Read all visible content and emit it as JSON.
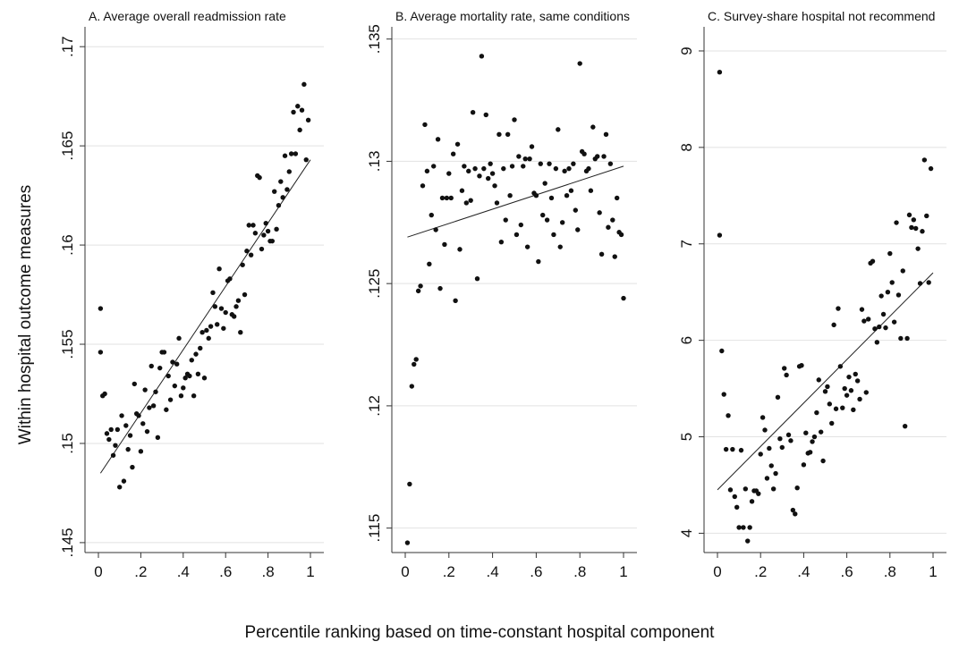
{
  "figure": {
    "ylabel": "Within hospital outcome measures",
    "xlabel": "Percentile ranking based on time-constant hospital component"
  },
  "chart_data": [
    {
      "type": "scatter",
      "title": "A. Average overall readmission rate",
      "xlim": [
        0,
        1
      ],
      "ylim": [
        0.1445,
        0.171
      ],
      "xticks": [
        0,
        0.2,
        0.4,
        0.6,
        0.8,
        1
      ],
      "xtick_labels": [
        "0",
        ".2",
        ".4",
        ".6",
        ".8",
        "1"
      ],
      "yticks": [
        0.145,
        0.15,
        0.155,
        0.16,
        0.165,
        0.17
      ],
      "ytick_labels": [
        ".145",
        ".15",
        ".155",
        ".16",
        ".165",
        ".17"
      ],
      "grid": true,
      "fit_line": [
        [
          0.01,
          0.1485
        ],
        [
          1.0,
          0.1643
        ]
      ],
      "points": [
        [
          0.01,
          0.1568
        ],
        [
          0.01,
          0.1546
        ],
        [
          0.02,
          0.1524
        ],
        [
          0.03,
          0.1525
        ],
        [
          0.04,
          0.1505
        ],
        [
          0.05,
          0.1502
        ],
        [
          0.06,
          0.1507
        ],
        [
          0.07,
          0.1494
        ],
        [
          0.08,
          0.1499
        ],
        [
          0.09,
          0.1507
        ],
        [
          0.1,
          0.1478
        ],
        [
          0.11,
          0.1514
        ],
        [
          0.12,
          0.1481
        ],
        [
          0.13,
          0.1509
        ],
        [
          0.14,
          0.1497
        ],
        [
          0.15,
          0.1504
        ],
        [
          0.16,
          0.1488
        ],
        [
          0.17,
          0.153
        ],
        [
          0.18,
          0.1515
        ],
        [
          0.19,
          0.1514
        ],
        [
          0.2,
          0.1496
        ],
        [
          0.21,
          0.151
        ],
        [
          0.22,
          0.1527
        ],
        [
          0.23,
          0.1506
        ],
        [
          0.24,
          0.1518
        ],
        [
          0.25,
          0.1539
        ],
        [
          0.26,
          0.1519
        ],
        [
          0.27,
          0.1526
        ],
        [
          0.28,
          0.1503
        ],
        [
          0.29,
          0.1538
        ],
        [
          0.3,
          0.1546
        ],
        [
          0.31,
          0.1546
        ],
        [
          0.32,
          0.1517
        ],
        [
          0.33,
          0.1534
        ],
        [
          0.34,
          0.1522
        ],
        [
          0.35,
          0.1541
        ],
        [
          0.36,
          0.1529
        ],
        [
          0.37,
          0.154
        ],
        [
          0.38,
          0.1553
        ],
        [
          0.39,
          0.1524
        ],
        [
          0.4,
          0.1528
        ],
        [
          0.41,
          0.1533
        ],
        [
          0.42,
          0.1535
        ],
        [
          0.43,
          0.1534
        ],
        [
          0.44,
          0.1542
        ],
        [
          0.45,
          0.1524
        ],
        [
          0.46,
          0.1545
        ],
        [
          0.47,
          0.1535
        ],
        [
          0.48,
          0.1548
        ],
        [
          0.49,
          0.1556
        ],
        [
          0.5,
          0.1533
        ],
        [
          0.51,
          0.1557
        ],
        [
          0.52,
          0.1553
        ],
        [
          0.53,
          0.1559
        ],
        [
          0.54,
          0.1576
        ],
        [
          0.55,
          0.1569
        ],
        [
          0.56,
          0.156
        ],
        [
          0.57,
          0.1588
        ],
        [
          0.58,
          0.1568
        ],
        [
          0.59,
          0.1558
        ],
        [
          0.6,
          0.1566
        ],
        [
          0.61,
          0.1582
        ],
        [
          0.62,
          0.1583
        ],
        [
          0.63,
          0.1565
        ],
        [
          0.64,
          0.1564
        ],
        [
          0.65,
          0.1569
        ],
        [
          0.66,
          0.1572
        ],
        [
          0.67,
          0.1556
        ],
        [
          0.68,
          0.159
        ],
        [
          0.69,
          0.1575
        ],
        [
          0.7,
          0.1597
        ],
        [
          0.71,
          0.161
        ],
        [
          0.72,
          0.1595
        ],
        [
          0.73,
          0.161
        ],
        [
          0.74,
          0.1606
        ],
        [
          0.75,
          0.1635
        ],
        [
          0.76,
          0.1634
        ],
        [
          0.77,
          0.1598
        ],
        [
          0.78,
          0.1605
        ],
        [
          0.79,
          0.1611
        ],
        [
          0.8,
          0.1607
        ],
        [
          0.81,
          0.1602
        ],
        [
          0.82,
          0.1602
        ],
        [
          0.83,
          0.1627
        ],
        [
          0.84,
          0.1608
        ],
        [
          0.85,
          0.162
        ],
        [
          0.86,
          0.1632
        ],
        [
          0.87,
          0.1624
        ],
        [
          0.88,
          0.1645
        ],
        [
          0.89,
          0.1628
        ],
        [
          0.9,
          0.1637
        ],
        [
          0.91,
          0.1646
        ],
        [
          0.92,
          0.1667
        ],
        [
          0.93,
          0.1646
        ],
        [
          0.94,
          0.167
        ],
        [
          0.95,
          0.1658
        ],
        [
          0.96,
          0.1668
        ],
        [
          0.97,
          0.1681
        ],
        [
          0.98,
          0.1643
        ],
        [
          0.99,
          0.1663
        ]
      ]
    },
    {
      "type": "scatter",
      "title": "B. Average mortality rate, same conditions",
      "xlim": [
        0,
        1
      ],
      "ylim": [
        0.114,
        0.1355
      ],
      "xticks": [
        0,
        0.2,
        0.4,
        0.6,
        0.8,
        1
      ],
      "xtick_labels": [
        "0",
        ".2",
        ".4",
        ".6",
        ".8",
        "1"
      ],
      "yticks": [
        0.115,
        0.12,
        0.125,
        0.13,
        0.135
      ],
      "ytick_labels": [
        ".115",
        ".12",
        ".125",
        ".13",
        ".135"
      ],
      "grid": true,
      "fit_line": [
        [
          0.01,
          0.1269
        ],
        [
          1.0,
          0.1298
        ]
      ],
      "points": [
        [
          0.01,
          0.1144
        ],
        [
          0.02,
          0.1168
        ],
        [
          0.03,
          0.1208
        ],
        [
          0.04,
          0.1217
        ],
        [
          0.05,
          0.1219
        ],
        [
          0.06,
          0.1247
        ],
        [
          0.07,
          0.1249
        ],
        [
          0.08,
          0.129
        ],
        [
          0.09,
          0.1315
        ],
        [
          0.1,
          0.1296
        ],
        [
          0.11,
          0.1258
        ],
        [
          0.12,
          0.1278
        ],
        [
          0.13,
          0.1298
        ],
        [
          0.14,
          0.1272
        ],
        [
          0.15,
          0.1309
        ],
        [
          0.16,
          0.1248
        ],
        [
          0.17,
          0.1285
        ],
        [
          0.18,
          0.1266
        ],
        [
          0.19,
          0.1285
        ],
        [
          0.2,
          0.1295
        ],
        [
          0.21,
          0.1285
        ],
        [
          0.22,
          0.1303
        ],
        [
          0.23,
          0.1243
        ],
        [
          0.24,
          0.1307
        ],
        [
          0.25,
          0.1264
        ],
        [
          0.26,
          0.1288
        ],
        [
          0.27,
          0.1298
        ],
        [
          0.28,
          0.1283
        ],
        [
          0.29,
          0.1296
        ],
        [
          0.3,
          0.1284
        ],
        [
          0.31,
          0.132
        ],
        [
          0.32,
          0.1297
        ],
        [
          0.33,
          0.1252
        ],
        [
          0.34,
          0.1294
        ],
        [
          0.35,
          0.1343
        ],
        [
          0.36,
          0.1297
        ],
        [
          0.37,
          0.1319
        ],
        [
          0.38,
          0.1293
        ],
        [
          0.39,
          0.1299
        ],
        [
          0.4,
          0.1295
        ],
        [
          0.41,
          0.129
        ],
        [
          0.42,
          0.1283
        ],
        [
          0.43,
          0.1311
        ],
        [
          0.44,
          0.1267
        ],
        [
          0.45,
          0.1297
        ],
        [
          0.46,
          0.1276
        ],
        [
          0.47,
          0.1311
        ],
        [
          0.48,
          0.1286
        ],
        [
          0.49,
          0.1298
        ],
        [
          0.5,
          0.1317
        ],
        [
          0.51,
          0.127
        ],
        [
          0.52,
          0.1302
        ],
        [
          0.53,
          0.1274
        ],
        [
          0.54,
          0.1298
        ],
        [
          0.55,
          0.1301
        ],
        [
          0.56,
          0.1265
        ],
        [
          0.57,
          0.1301
        ],
        [
          0.58,
          0.1306
        ],
        [
          0.59,
          0.1287
        ],
        [
          0.6,
          0.1286
        ],
        [
          0.61,
          0.1259
        ],
        [
          0.62,
          0.1299
        ],
        [
          0.63,
          0.1278
        ],
        [
          0.64,
          0.1291
        ],
        [
          0.65,
          0.1276
        ],
        [
          0.66,
          0.1299
        ],
        [
          0.67,
          0.1285
        ],
        [
          0.68,
          0.127
        ],
        [
          0.69,
          0.1297
        ],
        [
          0.7,
          0.1313
        ],
        [
          0.71,
          0.1265
        ],
        [
          0.72,
          0.1275
        ],
        [
          0.73,
          0.1296
        ],
        [
          0.74,
          0.1286
        ],
        [
          0.75,
          0.1297
        ],
        [
          0.76,
          0.1288
        ],
        [
          0.77,
          0.1299
        ],
        [
          0.78,
          0.128
        ],
        [
          0.79,
          0.1272
        ],
        [
          0.8,
          0.134
        ],
        [
          0.81,
          0.1304
        ],
        [
          0.82,
          0.1303
        ],
        [
          0.83,
          0.1296
        ],
        [
          0.84,
          0.1297
        ],
        [
          0.85,
          0.1288
        ],
        [
          0.86,
          0.1314
        ],
        [
          0.87,
          0.1301
        ],
        [
          0.88,
          0.1302
        ],
        [
          0.89,
          0.1279
        ],
        [
          0.9,
          0.1262
        ],
        [
          0.91,
          0.1302
        ],
        [
          0.92,
          0.1311
        ],
        [
          0.93,
          0.1273
        ],
        [
          0.94,
          0.1299
        ],
        [
          0.95,
          0.1276
        ],
        [
          0.96,
          0.1261
        ],
        [
          0.97,
          0.1285
        ],
        [
          0.98,
          0.1271
        ],
        [
          0.99,
          0.127
        ],
        [
          1.0,
          0.1244
        ]
      ]
    },
    {
      "type": "scatter",
      "title": "C. Survey-share hospital not recommend",
      "xlim": [
        0,
        1
      ],
      "ylim": [
        3.8,
        9.25
      ],
      "xticks": [
        0,
        0.2,
        0.4,
        0.6,
        0.8,
        1
      ],
      "xtick_labels": [
        "0",
        ".2",
        ".4",
        ".6",
        ".8",
        "1"
      ],
      "yticks": [
        4,
        5,
        6,
        7,
        8,
        9
      ],
      "ytick_labels": [
        "4",
        "5",
        "6",
        "7",
        "8",
        "9"
      ],
      "grid": true,
      "fit_line": [
        [
          0.0,
          4.45
        ],
        [
          1.0,
          6.7
        ]
      ],
      "points": [
        [
          0.01,
          8.78
        ],
        [
          0.01,
          7.09
        ],
        [
          0.02,
          5.89
        ],
        [
          0.03,
          5.44
        ],
        [
          0.04,
          4.87
        ],
        [
          0.05,
          5.22
        ],
        [
          0.06,
          4.45
        ],
        [
          0.07,
          4.87
        ],
        [
          0.08,
          4.38
        ],
        [
          0.09,
          4.27
        ],
        [
          0.1,
          4.06
        ],
        [
          0.11,
          4.86
        ],
        [
          0.12,
          4.06
        ],
        [
          0.13,
          4.46
        ],
        [
          0.14,
          3.92
        ],
        [
          0.15,
          4.06
        ],
        [
          0.16,
          4.33
        ],
        [
          0.17,
          4.44
        ],
        [
          0.18,
          4.44
        ],
        [
          0.19,
          4.41
        ],
        [
          0.2,
          4.82
        ],
        [
          0.21,
          5.2
        ],
        [
          0.22,
          5.07
        ],
        [
          0.23,
          4.57
        ],
        [
          0.24,
          4.88
        ],
        [
          0.25,
          4.7
        ],
        [
          0.26,
          4.46
        ],
        [
          0.27,
          4.62
        ],
        [
          0.28,
          5.41
        ],
        [
          0.29,
          4.98
        ],
        [
          0.3,
          4.89
        ],
        [
          0.31,
          5.71
        ],
        [
          0.32,
          5.64
        ],
        [
          0.33,
          5.02
        ],
        [
          0.34,
          4.96
        ],
        [
          0.35,
          4.24
        ],
        [
          0.36,
          4.2
        ],
        [
          0.37,
          4.47
        ],
        [
          0.38,
          5.73
        ],
        [
          0.39,
          5.74
        ],
        [
          0.4,
          4.71
        ],
        [
          0.41,
          5.04
        ],
        [
          0.42,
          4.83
        ],
        [
          0.43,
          4.84
        ],
        [
          0.44,
          4.95
        ],
        [
          0.45,
          5.0
        ],
        [
          0.46,
          5.25
        ],
        [
          0.47,
          5.59
        ],
        [
          0.48,
          5.05
        ],
        [
          0.49,
          4.75
        ],
        [
          0.5,
          5.47
        ],
        [
          0.51,
          5.52
        ],
        [
          0.52,
          5.34
        ],
        [
          0.53,
          5.14
        ],
        [
          0.54,
          6.16
        ],
        [
          0.55,
          5.29
        ],
        [
          0.56,
          6.33
        ],
        [
          0.57,
          5.73
        ],
        [
          0.58,
          5.3
        ],
        [
          0.59,
          5.5
        ],
        [
          0.6,
          5.43
        ],
        [
          0.61,
          5.62
        ],
        [
          0.62,
          5.48
        ],
        [
          0.63,
          5.28
        ],
        [
          0.64,
          5.65
        ],
        [
          0.65,
          5.58
        ],
        [
          0.66,
          5.39
        ],
        [
          0.67,
          6.32
        ],
        [
          0.68,
          6.2
        ],
        [
          0.69,
          5.46
        ],
        [
          0.7,
          6.22
        ],
        [
          0.71,
          6.8
        ],
        [
          0.72,
          6.82
        ],
        [
          0.73,
          6.12
        ],
        [
          0.74,
          5.98
        ],
        [
          0.75,
          6.14
        ],
        [
          0.76,
          6.46
        ],
        [
          0.77,
          6.27
        ],
        [
          0.78,
          6.13
        ],
        [
          0.79,
          6.5
        ],
        [
          0.8,
          6.9
        ],
        [
          0.81,
          6.6
        ],
        [
          0.82,
          6.19
        ],
        [
          0.83,
          7.22
        ],
        [
          0.84,
          6.47
        ],
        [
          0.85,
          6.02
        ],
        [
          0.86,
          6.72
        ],
        [
          0.87,
          5.11
        ],
        [
          0.88,
          6.02
        ],
        [
          0.89,
          7.3
        ],
        [
          0.9,
          7.17
        ],
        [
          0.91,
          7.25
        ],
        [
          0.92,
          7.16
        ],
        [
          0.93,
          6.95
        ],
        [
          0.94,
          6.59
        ],
        [
          0.95,
          7.13
        ],
        [
          0.96,
          7.87
        ],
        [
          0.97,
          7.29
        ],
        [
          0.98,
          6.6
        ],
        [
          0.99,
          7.78
        ]
      ]
    }
  ]
}
